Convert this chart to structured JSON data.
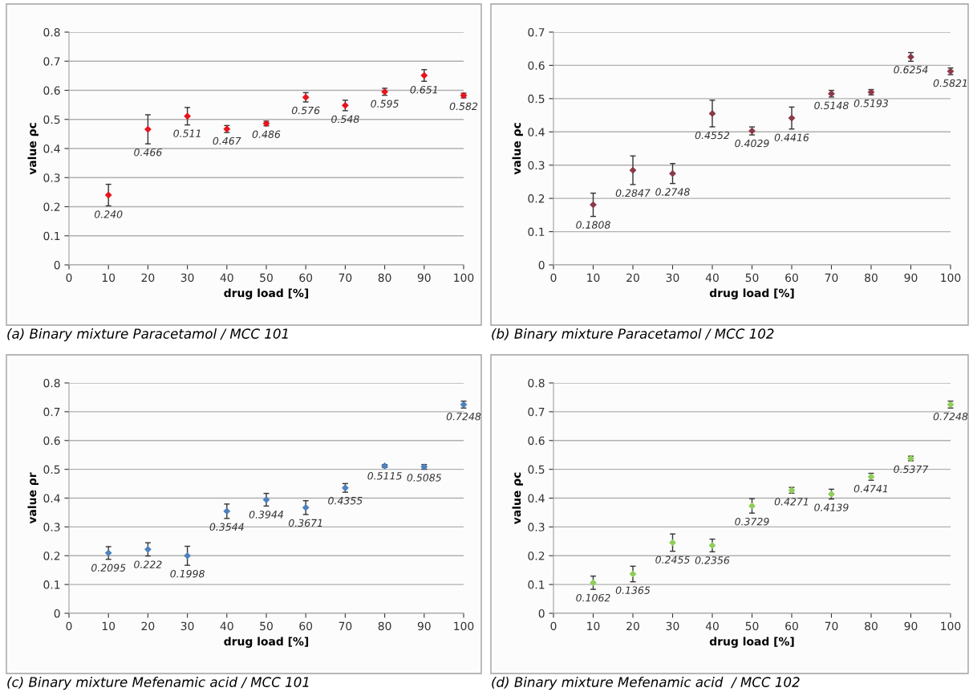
{
  "chart_data": [
    {
      "type": "scatter",
      "xlabel": "drug load [%]",
      "ylabel": "value ρc",
      "x": [
        10,
        20,
        30,
        40,
        50,
        60,
        70,
        80,
        90,
        100
      ],
      "xlim": [
        0,
        100
      ],
      "xticks": [
        0,
        10,
        20,
        30,
        40,
        50,
        60,
        70,
        80,
        90,
        100
      ],
      "ylim": [
        0,
        0.8
      ],
      "yticks": [
        0,
        0.1,
        0.2,
        0.3,
        0.4,
        0.5,
        0.6,
        0.7,
        0.8
      ],
      "grid": "y",
      "marker": "diamond",
      "annotations": [
        "(a) Binary mixture Paracetamol / MCC 101"
      ],
      "series": [
        {
          "color": "#e8141c",
          "values": [
            0.24,
            0.466,
            0.511,
            0.467,
            0.486,
            0.576,
            0.548,
            0.595,
            0.651,
            0.582
          ],
          "errors": [
            0.037,
            0.05,
            0.03,
            0.012,
            0.008,
            0.016,
            0.018,
            0.012,
            0.02,
            0.008
          ],
          "value_labels": [
            "0.240",
            "0.466",
            "0.511",
            "0.467",
            "0.486",
            "0.576",
            "0.548",
            "0.595",
            "0.651",
            "0.582"
          ]
        }
      ]
    },
    {
      "type": "scatter",
      "xlabel": "drug load [%]",
      "ylabel": "value ρc",
      "x": [
        10,
        20,
        30,
        40,
        50,
        60,
        70,
        80,
        90,
        100
      ],
      "xlim": [
        0,
        100
      ],
      "xticks": [
        0,
        10,
        20,
        30,
        40,
        50,
        60,
        70,
        80,
        90,
        100
      ],
      "ylim": [
        0,
        0.7
      ],
      "yticks": [
        0,
        0.1,
        0.2,
        0.3,
        0.4,
        0.5,
        0.6,
        0.7
      ],
      "grid": "y",
      "marker": "diamond",
      "annotations": [
        "(b) Binary mixture Paracetamol / MCC 102"
      ],
      "series": [
        {
          "color": "#8b3a4a",
          "values": [
            0.1808,
            0.2847,
            0.2748,
            0.4552,
            0.4029,
            0.4416,
            0.5148,
            0.5193,
            0.6254,
            0.5821
          ],
          "errors": [
            0.035,
            0.043,
            0.03,
            0.04,
            0.012,
            0.033,
            0.01,
            0.008,
            0.013,
            0.01
          ],
          "value_labels": [
            "0.1808",
            "0.2847",
            "0.2748",
            "0.4552",
            "0.4029",
            "0.4416",
            "0.5148",
            "0.5193",
            "0.6254",
            "0.5821"
          ]
        }
      ]
    },
    {
      "type": "scatter",
      "xlabel": "drug load [%]",
      "ylabel": "value ρr",
      "x": [
        10,
        20,
        30,
        40,
        50,
        60,
        70,
        80,
        90,
        100
      ],
      "xlim": [
        0,
        100
      ],
      "xticks": [
        0,
        10,
        20,
        30,
        40,
        50,
        60,
        70,
        80,
        90,
        100
      ],
      "ylim": [
        0,
        0.8
      ],
      "yticks": [
        0,
        0.1,
        0.2,
        0.3,
        0.4,
        0.5,
        0.6,
        0.7,
        0.8
      ],
      "grid": "y",
      "marker": "diamond",
      "annotations": [
        "(c) Binary mixture Mefenamic acid / MCC 101"
      ],
      "series": [
        {
          "color": "#4f81bd",
          "values": [
            0.2095,
            0.222,
            0.1998,
            0.3544,
            0.3944,
            0.3671,
            0.4355,
            0.5115,
            0.5085,
            0.7248
          ],
          "errors": [
            0.022,
            0.023,
            0.033,
            0.025,
            0.022,
            0.024,
            0.015,
            0.005,
            0.008,
            0.012
          ],
          "value_labels": [
            "0.2095",
            "0.222",
            "0.1998",
            "0.3544",
            "0.3944",
            "0.3671",
            "0.4355",
            "0.5115",
            "0.5085",
            "0.7248"
          ]
        }
      ]
    },
    {
      "type": "scatter",
      "xlabel": "drug load [%]",
      "ylabel": "value ρc",
      "x": [
        10,
        20,
        30,
        40,
        50,
        60,
        70,
        80,
        90,
        100
      ],
      "xlim": [
        0,
        100
      ],
      "xticks": [
        0,
        10,
        20,
        30,
        40,
        50,
        60,
        70,
        80,
        90,
        100
      ],
      "ylim": [
        0,
        0.8
      ],
      "yticks": [
        0,
        0.1,
        0.2,
        0.3,
        0.4,
        0.5,
        0.6,
        0.7,
        0.8
      ],
      "grid": "y",
      "marker": "diamond",
      "annotations": [
        "(d) Binary mixture Mefenamic acid  / MCC 102"
      ],
      "series": [
        {
          "color": "#8fce5a",
          "values": [
            0.1062,
            0.1365,
            0.2455,
            0.2356,
            0.3729,
            0.4271,
            0.4139,
            0.4741,
            0.5377,
            0.7248
          ],
          "errors": [
            0.023,
            0.027,
            0.03,
            0.022,
            0.025,
            0.01,
            0.017,
            0.012,
            0.008,
            0.012
          ],
          "value_labels": [
            "0.1062",
            "0.1365",
            "0.2455",
            "0.2356",
            "0.3729",
            "0.4271",
            "0.4139",
            "0.4741",
            "0.5377",
            "0.7248"
          ]
        }
      ]
    }
  ]
}
